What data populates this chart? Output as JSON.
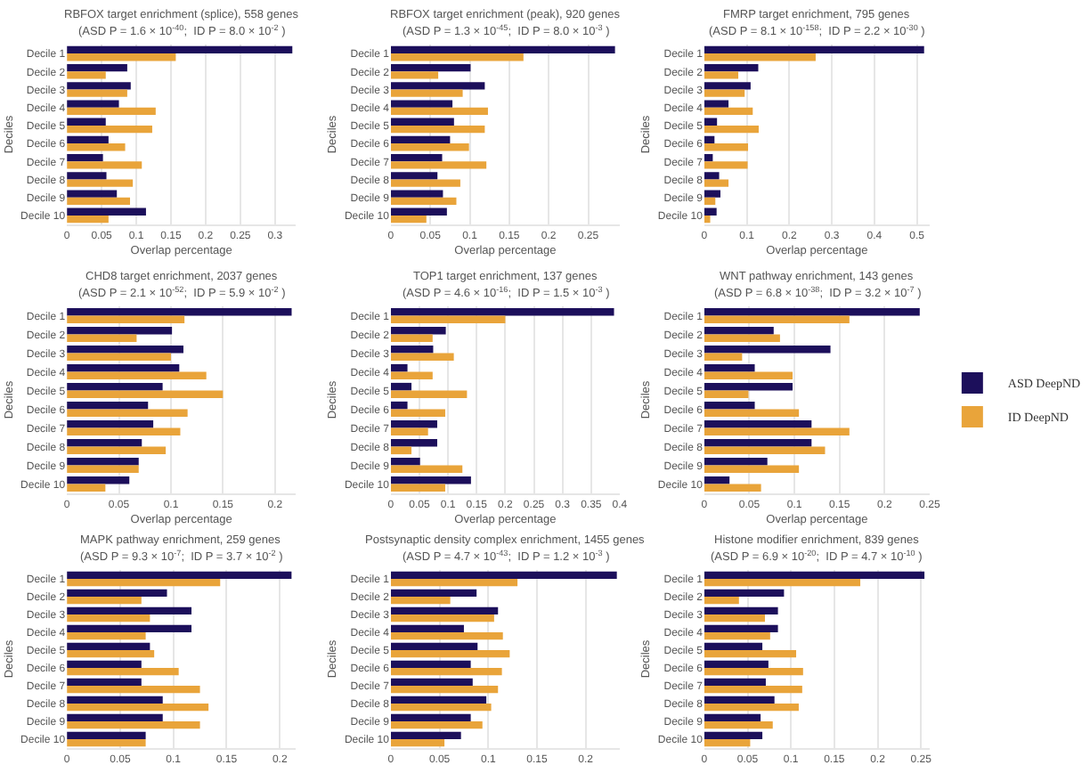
{
  "chart_data": [
    {
      "type": "bar",
      "orientation": "horizontal",
      "title": "RBFOX target enrichment (splice), 558 genes",
      "subtitle": "(ASD P = 1.6 × 10$^{-40}$;  ID P = 8.0 × 10$^{-2}$ )",
      "xlabel": "Overlap percentage",
      "ylabel": "Deciles",
      "grid": "x",
      "categories": [
        "Decile 1",
        "Decile 2",
        "Decile 3",
        "Decile 4",
        "Decile 5",
        "Decile 6",
        "Decile 7",
        "Decile 8",
        "Decile 9",
        "Decile 10"
      ],
      "xlim": [
        0,
        0.33
      ],
      "xticks": [
        0,
        0.05,
        0.1,
        0.15,
        0.2,
        0.25,
        0.3
      ],
      "series": [
        {
          "color": "#1c0f5b",
          "values": [
            0.325,
            0.087,
            0.092,
            0.075,
            0.056,
            0.06,
            0.052,
            0.057,
            0.072,
            0.114
          ]
        },
        {
          "color": "#e9a43a",
          "values": [
            0.157,
            0.056,
            0.087,
            0.128,
            0.123,
            0.084,
            0.108,
            0.095,
            0.091,
            0.06
          ]
        }
      ]
    },
    {
      "type": "bar",
      "orientation": "horizontal",
      "title": "RBFOX target enrichment (peak), 920 genes",
      "subtitle": "(ASD P = 1.3 × 10$^{-45}$;  ID P = 8.0 × 10$^{-3}$ )",
      "xlabel": "Overlap percentage",
      "ylabel": "Deciles",
      "grid": "x",
      "categories": [
        "Decile 1",
        "Decile 2",
        "Decile 3",
        "Decile 4",
        "Decile 5",
        "Decile 6",
        "Decile 7",
        "Decile 8",
        "Decile 9",
        "Decile 10"
      ],
      "xlim": [
        0,
        0.29
      ],
      "xticks": [
        0,
        0.05,
        0.1,
        0.15,
        0.2,
        0.25
      ],
      "series": [
        {
          "color": "#1c0f5b",
          "values": [
            0.284,
            0.101,
            0.119,
            0.078,
            0.08,
            0.075,
            0.065,
            0.059,
            0.066,
            0.071
          ]
        },
        {
          "color": "#e9a43a",
          "values": [
            0.168,
            0.06,
            0.091,
            0.123,
            0.119,
            0.099,
            0.121,
            0.088,
            0.083,
            0.045
          ]
        }
      ]
    },
    {
      "type": "bar",
      "orientation": "horizontal",
      "title": "FMRP target enrichment, 795 genes",
      "subtitle": "(ASD P = 8.1 × 10$^{-158}$;  ID P = 2.2 × 10$^{-30}$ )",
      "xlabel": "Overlap percentage",
      "ylabel": "Deciles",
      "grid": "x",
      "categories": [
        "Decile 1",
        "Decile 2",
        "Decile 3",
        "Decile 4",
        "Decile 5",
        "Decile 6",
        "Decile 7",
        "Decile 8",
        "Decile 9",
        "Decile 10"
      ],
      "xlim": [
        0,
        0.53
      ],
      "xticks": [
        0,
        0.1,
        0.2,
        0.3,
        0.4,
        0.5
      ],
      "series": [
        {
          "color": "#1c0f5b",
          "values": [
            0.517,
            0.127,
            0.109,
            0.057,
            0.03,
            0.024,
            0.02,
            0.035,
            0.038,
            0.029
          ]
        },
        {
          "color": "#e9a43a",
          "values": [
            0.262,
            0.08,
            0.095,
            0.114,
            0.128,
            0.103,
            0.102,
            0.057,
            0.026,
            0.014
          ]
        }
      ]
    },
    {
      "type": "bar",
      "orientation": "horizontal",
      "title": "CHD8 target enrichment, 2037 genes",
      "subtitle": "(ASD P = 2.1 × 10$^{-52}$;  ID P = 5.9 × 10$^{-2}$ )",
      "xlabel": "Overlap percentage",
      "ylabel": "Deciles",
      "grid": "x",
      "categories": [
        "Decile 1",
        "Decile 2",
        "Decile 3",
        "Decile 4",
        "Decile 5",
        "Decile 6",
        "Decile 7",
        "Decile 8",
        "Decile 9",
        "Decile 10"
      ],
      "xlim": [
        0,
        0.22
      ],
      "xticks": [
        0,
        0.05,
        0.1,
        0.15,
        0.2
      ],
      "series": [
        {
          "color": "#1c0f5b",
          "values": [
            0.216,
            0.101,
            0.112,
            0.108,
            0.092,
            0.078,
            0.083,
            0.072,
            0.069,
            0.06
          ]
        },
        {
          "color": "#e9a43a",
          "values": [
            0.113,
            0.067,
            0.1,
            0.134,
            0.15,
            0.116,
            0.109,
            0.095,
            0.069,
            0.037
          ]
        }
      ]
    },
    {
      "type": "bar",
      "orientation": "horizontal",
      "title": "TOP1 target enrichment, 137 genes",
      "subtitle": "(ASD P = 4.6 × 10$^{-16}$;  ID P = 1.5 × 10$^{-3}$ )",
      "xlabel": "Overlap percentage",
      "ylabel": "Deciles",
      "grid": "x",
      "categories": [
        "Decile 1",
        "Decile 2",
        "Decile 3",
        "Decile 4",
        "Decile 5",
        "Decile 6",
        "Decile 7",
        "Decile 8",
        "Decile 9",
        "Decile 10"
      ],
      "xlim": [
        0,
        0.4
      ],
      "xticks": [
        0,
        0.05,
        0.1,
        0.15,
        0.2,
        0.25,
        0.3,
        0.35,
        0.4
      ],
      "series": [
        {
          "color": "#1c0f5b",
          "values": [
            0.39,
            0.096,
            0.074,
            0.029,
            0.036,
            0.029,
            0.081,
            0.081,
            0.051,
            0.14
          ]
        },
        {
          "color": "#e9a43a",
          "values": [
            0.2,
            0.073,
            0.11,
            0.073,
            0.133,
            0.095,
            0.065,
            0.036,
            0.125,
            0.095
          ]
        }
      ]
    },
    {
      "type": "bar",
      "orientation": "horizontal",
      "title": "WNT pathway enrichment, 143 genes",
      "subtitle": "(ASD P = 6.8 × 10$^{-38}$;  ID P = 3.2 × 10$^{-7}$ )",
      "xlabel": "Overlap percentage",
      "ylabel": "Deciles",
      "grid": "x",
      "legend": "right",
      "categories": [
        "Decile 1",
        "Decile 2",
        "Decile 3",
        "Decile 4",
        "Decile 5",
        "Decile 6",
        "Decile 7",
        "Decile 8",
        "Decile 9",
        "Decile 10"
      ],
      "xlim": [
        0,
        0.25
      ],
      "xticks": [
        0,
        0.05,
        0.1,
        0.15,
        0.2,
        0.25
      ],
      "series": [
        {
          "name": "ASD DeepND",
          "color": "#1c0f5b",
          "values": [
            0.239,
            0.077,
            0.14,
            0.056,
            0.098,
            0.056,
            0.119,
            0.119,
            0.07,
            0.028
          ]
        },
        {
          "name": "ID DeepND",
          "color": "#e9a43a",
          "values": [
            0.161,
            0.084,
            0.042,
            0.098,
            0.049,
            0.105,
            0.161,
            0.134,
            0.105,
            0.063
          ]
        }
      ]
    },
    {
      "type": "bar",
      "orientation": "horizontal",
      "title": "MAPK pathway enrichment, 259 genes",
      "subtitle": "(ASD P = 9.3 × 10$^{-7}$;  ID P = 3.7 × 10$^{-2}$ )",
      "ylabel": "Deciles",
      "grid": "x",
      "categories": [
        "Decile 1",
        "Decile 2",
        "Decile 3",
        "Decile 4",
        "Decile 5",
        "Decile 6",
        "Decile 7",
        "Decile 8",
        "Decile 9",
        "Decile 10"
      ],
      "xlim": [
        0,
        0.215
      ],
      "xticks": [
        0,
        0.05,
        0.1,
        0.15,
        0.2
      ],
      "series": [
        {
          "color": "#1c0f5b",
          "values": [
            0.211,
            0.094,
            0.117,
            0.117,
            0.078,
            0.07,
            0.07,
            0.09,
            0.09,
            0.074
          ]
        },
        {
          "color": "#e9a43a",
          "values": [
            0.144,
            0.07,
            0.078,
            0.074,
            0.082,
            0.105,
            0.125,
            0.133,
            0.125,
            0.074
          ]
        }
      ]
    },
    {
      "type": "bar",
      "orientation": "horizontal",
      "title": "Postsynaptic density complex enrichment, 1455 genes",
      "subtitle": "(ASD P = 4.7 × 10$^{-43}$;  ID P = 1.2 × 10$^{-3}$ )",
      "ylabel": "Deciles",
      "grid": "x",
      "categories": [
        "Decile 1",
        "Decile 2",
        "Decile 3",
        "Decile 4",
        "Decile 5",
        "Decile 6",
        "Decile 7",
        "Decile 8",
        "Decile 9",
        "Decile 10"
      ],
      "xlim": [
        0,
        0.235
      ],
      "xticks": [
        0,
        0.05,
        0.1,
        0.15,
        0.2
      ],
      "series": [
        {
          "color": "#1c0f5b",
          "values": [
            0.232,
            0.088,
            0.11,
            0.075,
            0.089,
            0.082,
            0.084,
            0.098,
            0.082,
            0.072
          ]
        },
        {
          "color": "#e9a43a",
          "values": [
            0.13,
            0.061,
            0.106,
            0.115,
            0.122,
            0.114,
            0.11,
            0.103,
            0.094,
            0.055
          ]
        }
      ]
    },
    {
      "type": "bar",
      "orientation": "horizontal",
      "title": "Histone modifier enrichment, 839 genes",
      "subtitle": "(ASD P = 6.9 × 10$^{-20}$;  ID P = 4.7 × 10$^{-10}$ )",
      "ylabel": "Deciles",
      "grid": "x",
      "categories": [
        "Decile 1",
        "Decile 2",
        "Decile 3",
        "Decile 4",
        "Decile 5",
        "Decile 6",
        "Decile 7",
        "Decile 8",
        "Decile 9",
        "Decile 10"
      ],
      "xlim": [
        0,
        0.26
      ],
      "xticks": [
        0,
        0.05,
        0.1,
        0.15,
        0.2,
        0.25
      ],
      "series": [
        {
          "color": "#1c0f5b",
          "values": [
            0.254,
            0.092,
            0.085,
            0.085,
            0.067,
            0.074,
            0.071,
            0.081,
            0.065,
            0.067
          ]
        },
        {
          "color": "#e9a43a",
          "values": [
            0.18,
            0.04,
            0.07,
            0.076,
            0.106,
            0.114,
            0.113,
            0.109,
            0.079,
            0.053
          ]
        }
      ]
    }
  ]
}
